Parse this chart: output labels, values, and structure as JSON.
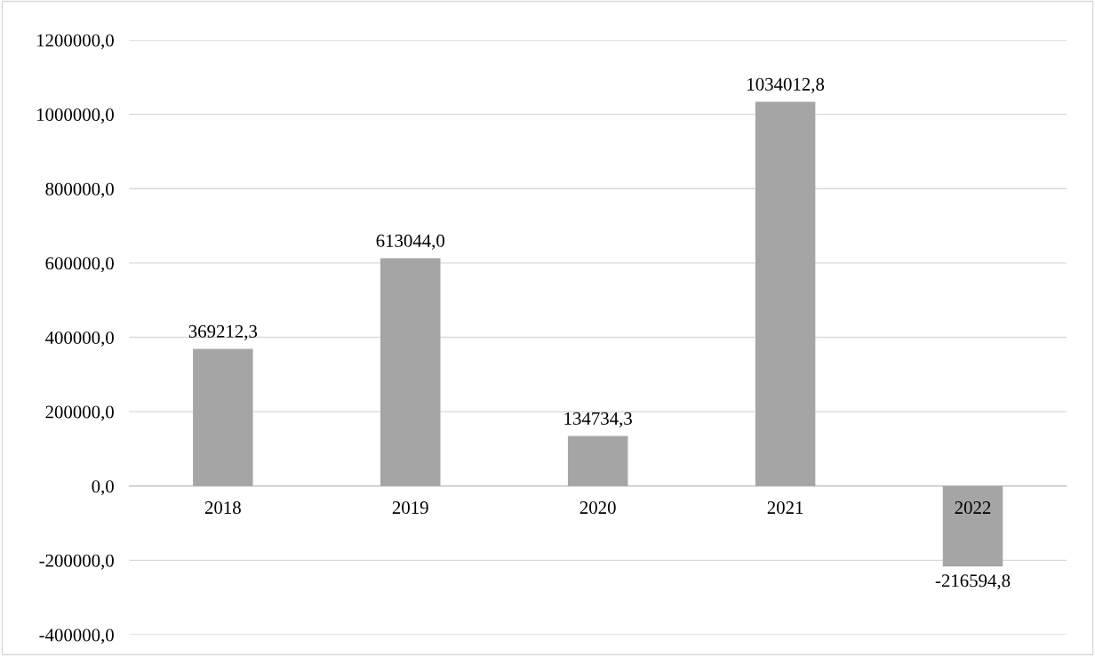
{
  "chart_data": {
    "type": "bar",
    "categories": [
      "2018",
      "2019",
      "2020",
      "2021",
      "2022"
    ],
    "values": [
      369212.3,
      613044.0,
      134734.3,
      1034012.8,
      -216594.8
    ],
    "value_labels": [
      "369212,3",
      "613044,0",
      "134734,3",
      "1034012,8",
      "-216594,8"
    ],
    "color": "#a5a5a5",
    "ylim": [
      -400000,
      1200000
    ],
    "yticks": [
      {
        "value": -400000,
        "label": "-400000,0"
      },
      {
        "value": -200000,
        "label": "-200000,0"
      },
      {
        "value": 0,
        "label": "0,0"
      },
      {
        "value": 200000,
        "label": "200000,0"
      },
      {
        "value": 400000,
        "label": "400000,0"
      },
      {
        "value": 600000,
        "label": "600000,0"
      },
      {
        "value": 800000,
        "label": "800000,0"
      },
      {
        "value": 1000000,
        "label": "1000000,0"
      },
      {
        "value": 1200000,
        "label": "1200000,0"
      }
    ],
    "grid": "y",
    "legend": false
  }
}
